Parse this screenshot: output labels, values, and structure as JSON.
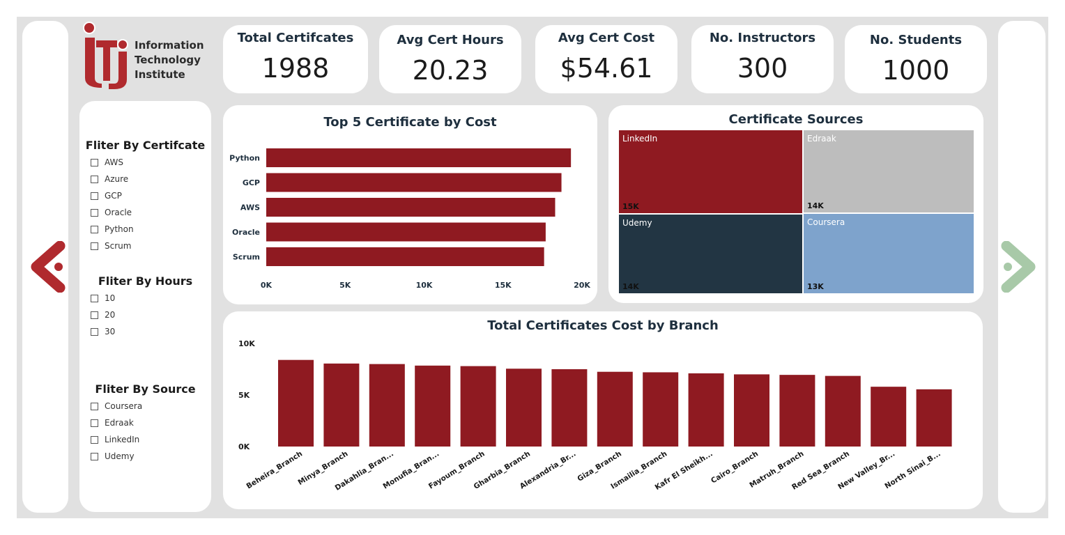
{
  "logo": {
    "line1": "Information",
    "line2": "Technology",
    "line3": "Institute"
  },
  "kpis": [
    {
      "label": "Total Certifcates",
      "value": "1988"
    },
    {
      "label": "Avg Cert Hours",
      "value": "20.23"
    },
    {
      "label": "Avg Cert Cost",
      "value": "$54.61"
    },
    {
      "label": "No. Instructors",
      "value": "300"
    },
    {
      "label": "No. Students",
      "value": "1000"
    }
  ],
  "filters": {
    "certificate": {
      "title": "Fliter By Certifcate",
      "options": [
        "AWS",
        "Azure",
        "GCP",
        "Oracle",
        "Python",
        "Scrum"
      ]
    },
    "hours": {
      "title": "Fliter By Hours",
      "options": [
        "10",
        "20",
        "30"
      ]
    },
    "source": {
      "title": "Fliter By Source",
      "options": [
        "Coursera",
        "Edraak",
        "LinkedIn",
        "Udemy"
      ]
    }
  },
  "nav": {
    "prev_icon": "arrow-left-icon",
    "next_icon": "arrow-right-icon",
    "prev_color": "#b02a2e",
    "next_color": "#a8c9a8"
  },
  "colors": {
    "primary_bar": "#8f1a21",
    "title_text": "#1e2f3e"
  },
  "chart_data": [
    {
      "type": "bar",
      "orientation": "horizontal",
      "title": "Top 5 Certificate by Cost",
      "categories": [
        "Python",
        "GCP",
        "AWS",
        "Oracle",
        "Scrum"
      ],
      "values": [
        19300,
        18700,
        18300,
        17700,
        17600
      ],
      "xlim": [
        0,
        20000
      ],
      "ticks": [
        "0K",
        "5K",
        "10K",
        "15K",
        "20K"
      ],
      "color": "#8f1a21"
    },
    {
      "type": "treemap",
      "title": "Certificate Sources",
      "items": [
        {
          "name": "LinkedIn",
          "label": "15K",
          "value": 15000,
          "color": "#8f1a21"
        },
        {
          "name": "Edraak",
          "label": "14K",
          "value": 14000,
          "color": "#bdbdbd"
        },
        {
          "name": "Udemy",
          "label": "14K",
          "value": 14000,
          "color": "#223543"
        },
        {
          "name": "Coursera",
          "label": "13K",
          "value": 13000,
          "color": "#7ea3cc"
        }
      ]
    },
    {
      "type": "bar",
      "orientation": "vertical",
      "title": "Total Certificates Cost by Branch",
      "categories": [
        "Beheira_Branch",
        "Minya_Branch",
        "Dakahlia_Bran...",
        "Monufia_Bran...",
        "Fayoum_Branch",
        "Gharbia_Branch",
        "Alexandria_Br...",
        "Giza_Branch",
        "Ismailia_Branch",
        "Kafr El Sheikh...",
        "Cairo_Branch",
        "Matruh_Branch",
        "Red Sea_Branch",
        "New Valley_Br...",
        "North Sinai_B..."
      ],
      "values": [
        8400,
        8050,
        8000,
        7850,
        7800,
        7550,
        7500,
        7250,
        7200,
        7100,
        7000,
        6950,
        6850,
        5800,
        5550
      ],
      "ylim": [
        0,
        10000
      ],
      "ticks": [
        "0K",
        "5K",
        "10K"
      ],
      "color": "#8f1a21"
    }
  ]
}
